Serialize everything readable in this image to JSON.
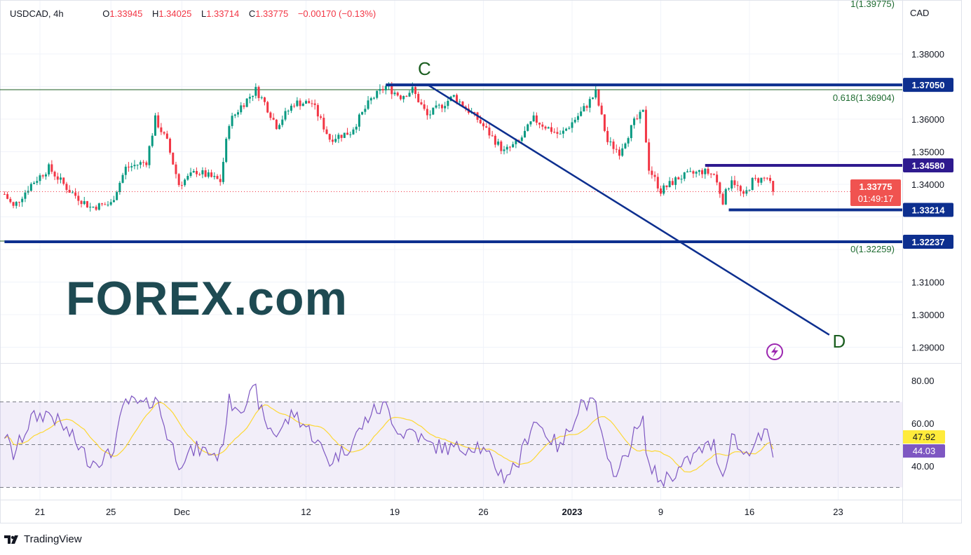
{
  "legend": {
    "symbol": "USDCAD, 4h",
    "open_label": "O",
    "open": "1.33945",
    "high_label": "H",
    "high": "1.34025",
    "low_label": "L",
    "low": "1.33714",
    "close_label": "C",
    "close": "1.33775",
    "change": "−0.00170 (−0.13%)"
  },
  "price_axis": {
    "currency": "CAD",
    "ticks": [
      "1.38000",
      "1.36000",
      "1.35000",
      "1.34000",
      "1.31000",
      "1.30000",
      "1.29000"
    ],
    "tick_values": [
      1.38,
      1.36,
      1.35,
      1.34,
      1.31,
      1.3,
      1.29
    ],
    "current_price": "1.33775",
    "countdown": "01:49:17"
  },
  "rsi_axis": {
    "ticks": [
      "80.00",
      "60.00",
      "40.00"
    ],
    "tick_values": [
      80,
      60,
      40
    ],
    "ma_value": "47.92",
    "rsi_value": "44.03"
  },
  "time_axis": {
    "labels": [
      {
        "text": "21",
        "date": "2022-11-21"
      },
      {
        "text": "25",
        "date": "2022-11-25"
      },
      {
        "text": "Dec",
        "date": "2022-12-01"
      },
      {
        "text": "12",
        "date": "2022-12-12"
      },
      {
        "text": "19",
        "date": "2022-12-19"
      },
      {
        "text": "26",
        "date": "2022-12-26"
      },
      {
        "text": "2023",
        "date": "2023-01-02"
      },
      {
        "text": "9",
        "date": "2023-01-09"
      },
      {
        "text": "16",
        "date": "2023-01-16"
      },
      {
        "text": "23",
        "date": "2023-01-23"
      }
    ]
  },
  "drawings": {
    "levels": [
      {
        "label": "1.37050",
        "price": 1.3705,
        "from": "2022-12-16T12",
        "color": "#0d2f8f"
      },
      {
        "label": "1.34580",
        "price": 1.3458,
        "from": "2023-01-11T12",
        "color": "#2e1a8f"
      },
      {
        "label": "1.33214",
        "price": 1.33214,
        "from": "2023-01-12T20",
        "color": "#0d2f8f"
      },
      {
        "label": "1.32237",
        "price": 1.32237,
        "from": "2022-11-17T00",
        "color": "#0d2f8f"
      }
    ],
    "fib": [
      {
        "label": "1(1.39775)",
        "price": 1.39775
      },
      {
        "label": "0.618(1.36904)",
        "price": 1.36904
      },
      {
        "label": "0(1.32259)",
        "price": 1.32259
      }
    ],
    "trendline": {
      "start": {
        "time": "2022-12-16T12",
        "price": 1.3705,
        "label": "C"
      },
      "end": {
        "time": "2023-01-20T12",
        "price": 1.2938,
        "label": "D"
      }
    }
  },
  "watermark": {
    "text": "FOREX.com",
    "brand_color": "#1e4a52",
    "accent_color": "#10b26e"
  },
  "footer": {
    "brand": "TradingView"
  },
  "colors": {
    "up": "#089981",
    "down": "#f23645",
    "rsi": "#7e57c2",
    "rsi_ma": "#fdd835",
    "fib": "#1b5e20"
  },
  "chart_data": {
    "type": "candlestick",
    "symbol": "USDCAD",
    "interval": "4h",
    "ylim": [
      1.2875,
      1.3995
    ],
    "price_path": [
      [
        "2022-11-17T00",
        1.337
      ],
      [
        "2022-11-17T12",
        1.333
      ],
      [
        "2022-11-18T12",
        1.34
      ],
      [
        "2022-11-21T12",
        1.345
      ],
      [
        "2022-11-22T16",
        1.338
      ],
      [
        "2022-11-23T20",
        1.333
      ],
      [
        "2022-11-25T00",
        1.334
      ],
      [
        "2022-11-25T20",
        1.345
      ],
      [
        "2022-11-29T00",
        1.347
      ],
      [
        "2022-11-29T12",
        1.36
      ],
      [
        "2022-11-30T04",
        1.353
      ],
      [
        "2022-11-30T20",
        1.34
      ],
      [
        "2022-12-01T20",
        1.344
      ],
      [
        "2022-12-05T04",
        1.341
      ],
      [
        "2022-12-05T16",
        1.359
      ],
      [
        "2022-12-06T08",
        1.364
      ],
      [
        "2022-12-07T04",
        1.369
      ],
      [
        "2022-12-07T16",
        1.365
      ],
      [
        "2022-12-08T08",
        1.358
      ],
      [
        "2022-12-09T08",
        1.365
      ],
      [
        "2022-12-12T08",
        1.365
      ],
      [
        "2022-12-13T08",
        1.354
      ],
      [
        "2022-12-14T12",
        1.356
      ],
      [
        "2022-12-15T16",
        1.366
      ],
      [
        "2022-12-16T12",
        1.37
      ],
      [
        "2022-12-19T08",
        1.367
      ],
      [
        "2022-12-20T00",
        1.369
      ],
      [
        "2022-12-20T20",
        1.361
      ],
      [
        "2022-12-22T08",
        1.367
      ],
      [
        "2022-12-23T16",
        1.36
      ],
      [
        "2022-12-27T04",
        1.35
      ],
      [
        "2022-12-28T00",
        1.353
      ],
      [
        "2022-12-28T20",
        1.36
      ],
      [
        "2022-12-30T08",
        1.355
      ],
      [
        "2023-01-02T12",
        1.362
      ],
      [
        "2023-01-03T08",
        1.368
      ],
      [
        "2023-01-04T00",
        1.353
      ],
      [
        "2023-01-04T16",
        1.35
      ],
      [
        "2023-01-05T12",
        1.359
      ],
      [
        "2023-01-06T00",
        1.362
      ],
      [
        "2023-01-06T08",
        1.345
      ],
      [
        "2023-01-09T00",
        1.338
      ],
      [
        "2023-01-10T00",
        1.342
      ],
      [
        "2023-01-11T08",
        1.344
      ],
      [
        "2023-01-12T00",
        1.343
      ],
      [
        "2023-01-12T12",
        1.335
      ],
      [
        "2023-01-13T00",
        1.342
      ],
      [
        "2023-01-13T16",
        1.336
      ],
      [
        "2023-01-16T04",
        1.341
      ],
      [
        "2023-01-17T00",
        1.342
      ],
      [
        "2023-01-17T08",
        1.33775
      ]
    ],
    "rsi": {
      "ylim": [
        24,
        87
      ],
      "bands": [
        30,
        50,
        70
      ],
      "path": [
        [
          "2022-11-17T00",
          55
        ],
        [
          "2022-11-17T12",
          45
        ],
        [
          "2022-11-18T12",
          62
        ],
        [
          "2022-11-21T12",
          65
        ],
        [
          "2022-11-22T16",
          55
        ],
        [
          "2022-11-23T20",
          42
        ],
        [
          "2022-11-25T00",
          45
        ],
        [
          "2022-11-25T20",
          70
        ],
        [
          "2022-11-29T00",
          68
        ],
        [
          "2022-11-29T12",
          73
        ],
        [
          "2022-11-30T04",
          55
        ],
        [
          "2022-11-30T20",
          42
        ],
        [
          "2022-12-01T20",
          48
        ],
        [
          "2022-12-05T04",
          45
        ],
        [
          "2022-12-05T16",
          70
        ],
        [
          "2022-12-06T08",
          68
        ],
        [
          "2022-12-07T04",
          75
        ],
        [
          "2022-12-07T16",
          60
        ],
        [
          "2022-12-08T08",
          55
        ],
        [
          "2022-12-09T08",
          65
        ],
        [
          "2022-12-12T08",
          55
        ],
        [
          "2022-12-13T08",
          42
        ],
        [
          "2022-12-14T12",
          50
        ],
        [
          "2022-12-15T16",
          65
        ],
        [
          "2022-12-16T12",
          68
        ],
        [
          "2022-12-19T08",
          55
        ],
        [
          "2022-12-20T00",
          57
        ],
        [
          "2022-12-20T20",
          50
        ],
        [
          "2022-12-22T08",
          48
        ],
        [
          "2022-12-23T16",
          50
        ],
        [
          "2022-12-27T04",
          35
        ],
        [
          "2022-12-28T00",
          42
        ],
        [
          "2022-12-28T20",
          62
        ],
        [
          "2022-12-30T08",
          48
        ],
        [
          "2023-01-02T12",
          70
        ],
        [
          "2023-01-03T08",
          68
        ],
        [
          "2023-01-04T00",
          40
        ],
        [
          "2023-01-04T16",
          38
        ],
        [
          "2023-01-05T12",
          55
        ],
        [
          "2023-01-06T00",
          60
        ],
        [
          "2023-01-06T08",
          40
        ],
        [
          "2023-01-09T00",
          33
        ],
        [
          "2023-01-10T00",
          38
        ],
        [
          "2023-01-11T08",
          48
        ],
        [
          "2023-01-12T00",
          50
        ],
        [
          "2023-01-12T12",
          35
        ],
        [
          "2023-01-13T00",
          55
        ],
        [
          "2023-01-13T16",
          45
        ],
        [
          "2023-01-16T04",
          50
        ],
        [
          "2023-01-17T00",
          55
        ],
        [
          "2023-01-17T08",
          44.03
        ]
      ],
      "ma_last": 47.92
    }
  }
}
